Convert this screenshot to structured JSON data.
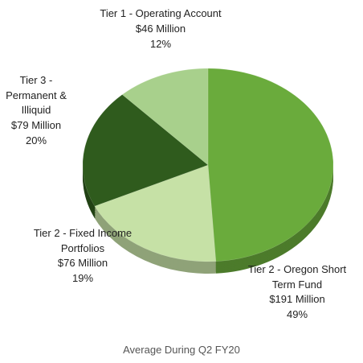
{
  "chart_data": {
    "type": "pie",
    "title": "Average During Q2 FY20",
    "categories": [
      "Tier 2 - Oregon Short Term Fund",
      "Tier 2 - Fixed Income Portfolios",
      "Tier 3 - Permanent & Illiquid",
      "Tier 1 - Operating Account"
    ],
    "amount_labels": [
      "$191 Million",
      "$76 Million",
      "$79 Million",
      "$46 Million"
    ],
    "values": [
      49,
      19,
      20,
      12
    ],
    "value_labels": [
      "49%",
      "19%",
      "20%",
      "12%"
    ],
    "colors": [
      "#6aab3c",
      "#c6e1a6",
      "#2f5b1d",
      "#a8d08c"
    ]
  }
}
